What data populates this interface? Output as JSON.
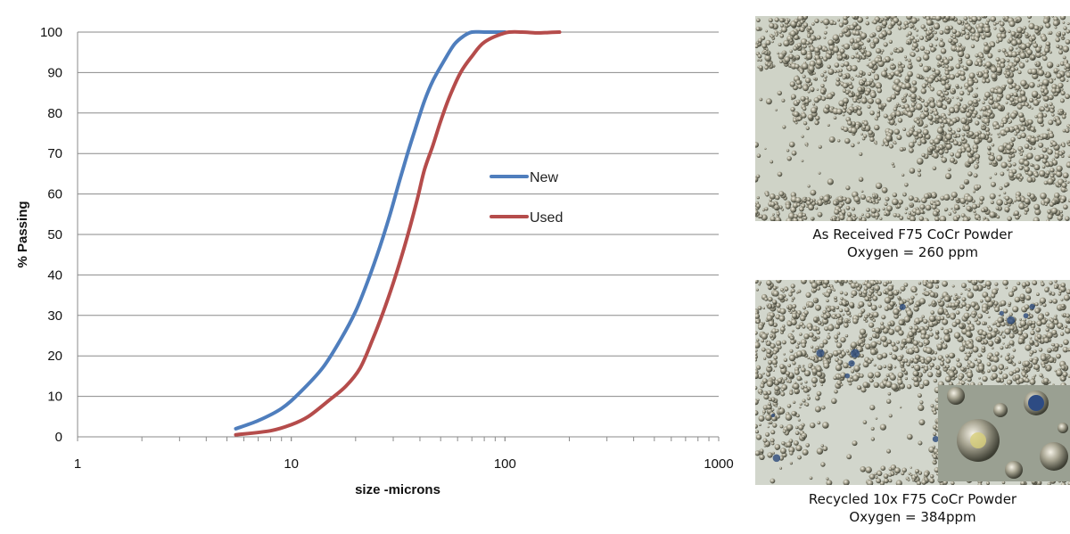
{
  "chart_data": {
    "type": "line",
    "title": "",
    "xlabel": "size -microns",
    "ylabel": "% Passing",
    "x_scale": "log",
    "xlim": [
      1,
      1000
    ],
    "ylim": [
      0,
      100
    ],
    "x_ticks": [
      "1",
      "10",
      "100",
      "1000"
    ],
    "y_ticks": [
      "0",
      "10",
      "20",
      "30",
      "40",
      "50",
      "60",
      "70",
      "80",
      "90",
      "100"
    ],
    "grid": "horizontal",
    "legend_position": "center-right",
    "series": [
      {
        "name": "New",
        "color": "#4f7ebd",
        "x": [
          5.5,
          7,
          9,
          11,
          14,
          17,
          20,
          23,
          26,
          29,
          32,
          35,
          38,
          42,
          46,
          52,
          58,
          64,
          70,
          80,
          100
        ],
        "y": [
          2,
          4,
          7,
          11,
          17,
          24,
          31,
          39,
          47,
          55,
          63,
          70,
          76,
          83,
          88,
          93,
          97,
          99,
          100,
          100,
          100
        ]
      },
      {
        "name": "Used",
        "color": "#b54c4b",
        "x": [
          5.5,
          8,
          10,
          12,
          15,
          18,
          21,
          24,
          27,
          30,
          33,
          36,
          39,
          42,
          46,
          50,
          55,
          62,
          70,
          80,
          100,
          120,
          140,
          160,
          180
        ],
        "y": [
          0.5,
          1.5,
          3,
          5,
          9,
          12.5,
          17,
          24,
          31,
          38,
          45,
          52,
          59,
          66,
          72,
          78,
          84,
          90,
          94,
          97.5,
          99.8,
          100,
          99.8,
          99.9,
          100
        ]
      }
    ]
  },
  "images": [
    {
      "caption_line1": "As Received F75 CoCr Powder",
      "caption_line2": "Oxygen = 260 ppm"
    },
    {
      "caption_line1": "Recycled 10x F75 CoCr Powder",
      "caption_line2": "Oxygen = 384ppm"
    }
  ]
}
